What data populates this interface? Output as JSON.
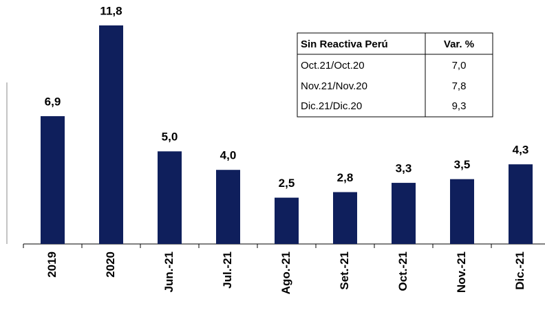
{
  "chart_data": {
    "type": "bar",
    "categories": [
      "2019",
      "2020",
      "Jun.-21",
      "Jul.-21",
      "Ago.-21",
      "Set.-21",
      "Oct.-21",
      "Nov.-21",
      "Dic.-21"
    ],
    "values": [
      6.9,
      11.8,
      5.0,
      4.0,
      2.5,
      2.8,
      3.3,
      3.5,
      4.3
    ],
    "value_labels": [
      "6,9",
      "11,8",
      "5,0",
      "4,0",
      "2,5",
      "2,8",
      "3,3",
      "3,5",
      "4,3"
    ],
    "color": "#0f1f5c",
    "ylim": [
      0,
      12
    ]
  },
  "table": {
    "header": [
      "Sin Reactiva Perú",
      "Var. %"
    ],
    "rows": [
      [
        "Oct.21/Oct.20",
        "7,0"
      ],
      [
        "Nov.21/Nov.20",
        "7,8"
      ],
      [
        "Dic.21/Dic.20",
        "9,3"
      ]
    ]
  }
}
